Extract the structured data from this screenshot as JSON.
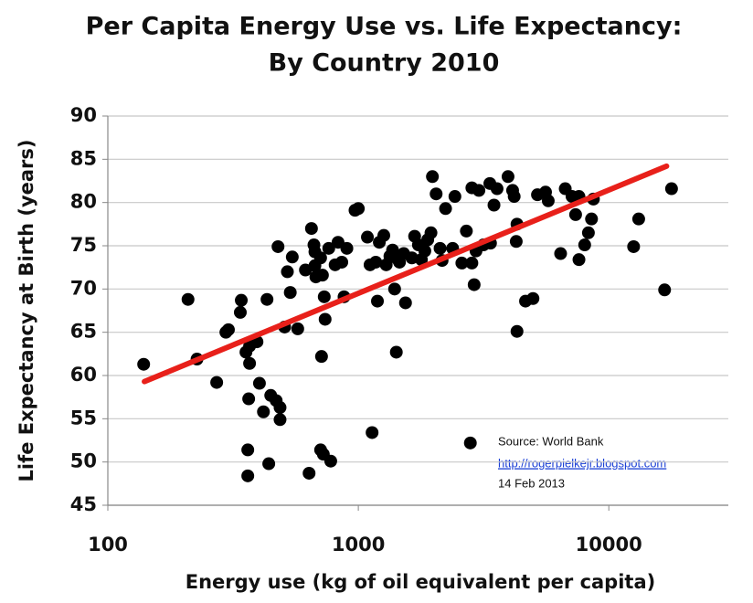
{
  "chart_data": {
    "type": "scatter",
    "title": [
      "Per Capita Energy Use vs. Life Expectancy:",
      "By Country 2010"
    ],
    "x_label": "Energy use (kg of oil equivalent per capita)",
    "y_label": "Life Expectancy at Birth (years)",
    "log_x": true,
    "grid": true,
    "xlim": [
      100,
      30000
    ],
    "ylim": [
      45,
      90
    ],
    "xticks": [
      100,
      1000,
      10000
    ],
    "yticks": [
      45,
      50,
      55,
      60,
      65,
      70,
      75,
      80,
      85,
      90
    ],
    "color": "#000000",
    "x": [
      139,
      209,
      227,
      272,
      296,
      303,
      341,
      338,
      356,
      368,
      368,
      365,
      362,
      362,
      394,
      403,
      418,
      432,
      439,
      447,
      470,
      487,
      487,
      478,
      508,
      521,
      535,
      545,
      573,
      615,
      650,
      671,
      671,
      665,
      677,
      713,
      707,
      707,
      725,
      719,
      731,
      737,
      776,
      762,
      808,
      830,
      859,
      877,
      900,
      970,
      1000,
      636,
      1087,
      1114,
      1135,
      1174,
      1192,
      1213,
      1264,
      1292,
      1337,
      1370,
      1396,
      1418,
      1430,
      1460,
      1518,
      1543,
      1636,
      1678,
      1737,
      1786,
      1843,
      1893,
      1950,
      1976,
      2045,
      2120,
      2160,
      2230,
      2380,
      2430,
      2590,
      2700,
      2840,
      2840,
      2900,
      2950,
      3030,
      3160,
      3350,
      3370,
      3480,
      3580,
      3960,
      4130,
      4190,
      4300,
      4270,
      4300,
      4650,
      4980,
      5190,
      5590,
      5730,
      6420,
      6700,
      7130,
      7370,
      7600,
      7600,
      8010,
      8290,
      8530,
      8680,
      12560,
      13160,
      16700,
      17800,
      2800
    ],
    "y": [
      61.3,
      68.8,
      61.9,
      59.2,
      65.0,
      65.3,
      68.7,
      67.3,
      62.7,
      63.4,
      61.4,
      57.3,
      51.4,
      48.4,
      63.9,
      59.1,
      55.8,
      68.8,
      49.8,
      57.7,
      57.1,
      56.3,
      54.9,
      74.9,
      65.6,
      72.0,
      69.6,
      73.7,
      65.4,
      72.2,
      77.0,
      74.3,
      72.7,
      75.1,
      71.4,
      62.2,
      73.6,
      51.4,
      50.9,
      71.6,
      69.1,
      66.5,
      50.1,
      74.7,
      72.8,
      75.4,
      73.1,
      69.1,
      74.7,
      79.1,
      79.3,
      48.7,
      76.0,
      72.8,
      53.4,
      73.1,
      68.6,
      75.4,
      76.2,
      72.8,
      73.8,
      74.5,
      70.0,
      62.7,
      73.5,
      73.1,
      74.1,
      68.4,
      73.6,
      76.1,
      75.1,
      73.4,
      74.4,
      75.7,
      76.5,
      83.0,
      81.0,
      74.7,
      73.3,
      79.3,
      74.7,
      80.7,
      73.0,
      76.7,
      73.0,
      81.7,
      70.5,
      74.4,
      81.4,
      75.1,
      82.2,
      75.3,
      79.7,
      81.6,
      83.0,
      81.4,
      80.7,
      77.5,
      75.5,
      65.1,
      68.6,
      68.9,
      80.9,
      81.2,
      80.2,
      74.1,
      81.6,
      80.7,
      78.6,
      73.4,
      80.7,
      75.1,
      76.5,
      78.1,
      80.4,
      74.9,
      78.1,
      69.9,
      81.6,
      52.2
    ],
    "trendline": {
      "x": [
        140,
        17000
      ],
      "y": [
        59.3,
        84.2
      ],
      "color": "#e8201a"
    },
    "annotations": [
      "Source: World Bank",
      "http://rogerpielkejr.blogspot.com",
      "14 Feb 2013"
    ]
  }
}
